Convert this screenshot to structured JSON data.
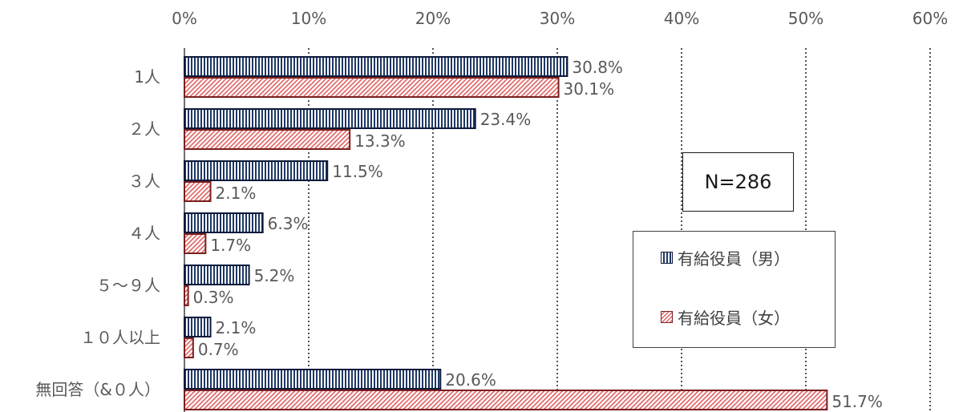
{
  "chart_data": {
    "type": "bar",
    "orientation": "horizontal",
    "categories": [
      "1人",
      "2人",
      "3人",
      "4人",
      "5～9人",
      "10人以上",
      "無回答（&0人）"
    ],
    "category_labels": [
      "1人",
      "２人",
      "３人",
      "４人",
      "５～９人",
      "１０人以上",
      "無回答（&０人）"
    ],
    "series": [
      {
        "name": "有給役員（男）",
        "values": [
          30.8,
          23.4,
          11.5,
          6.3,
          5.2,
          2.1,
          20.6
        ],
        "labels": [
          "30.8%",
          "23.4%",
          "11.5%",
          "6.3%",
          "5.2%",
          "2.1%",
          "20.6%"
        ]
      },
      {
        "name": "有給役員（女）",
        "values": [
          30.1,
          13.3,
          2.1,
          1.7,
          0.3,
          0.7,
          51.7
        ],
        "labels": [
          "30.1%",
          "13.3%",
          "2.1%",
          "1.7%",
          "0.3%",
          "0.7%",
          "51.7%"
        ]
      }
    ],
    "xlim": [
      0,
      60
    ],
    "xticks": [
      "0%",
      "10%",
      "20%",
      "30%",
      "40%",
      "50%",
      "60%"
    ],
    "grid": "vertical dotted",
    "legend_position": "right"
  },
  "annotation": {
    "n_label": "N=286"
  },
  "colors": {
    "male_stripe": "#1f3864",
    "female_hatch": "#e06060"
  }
}
